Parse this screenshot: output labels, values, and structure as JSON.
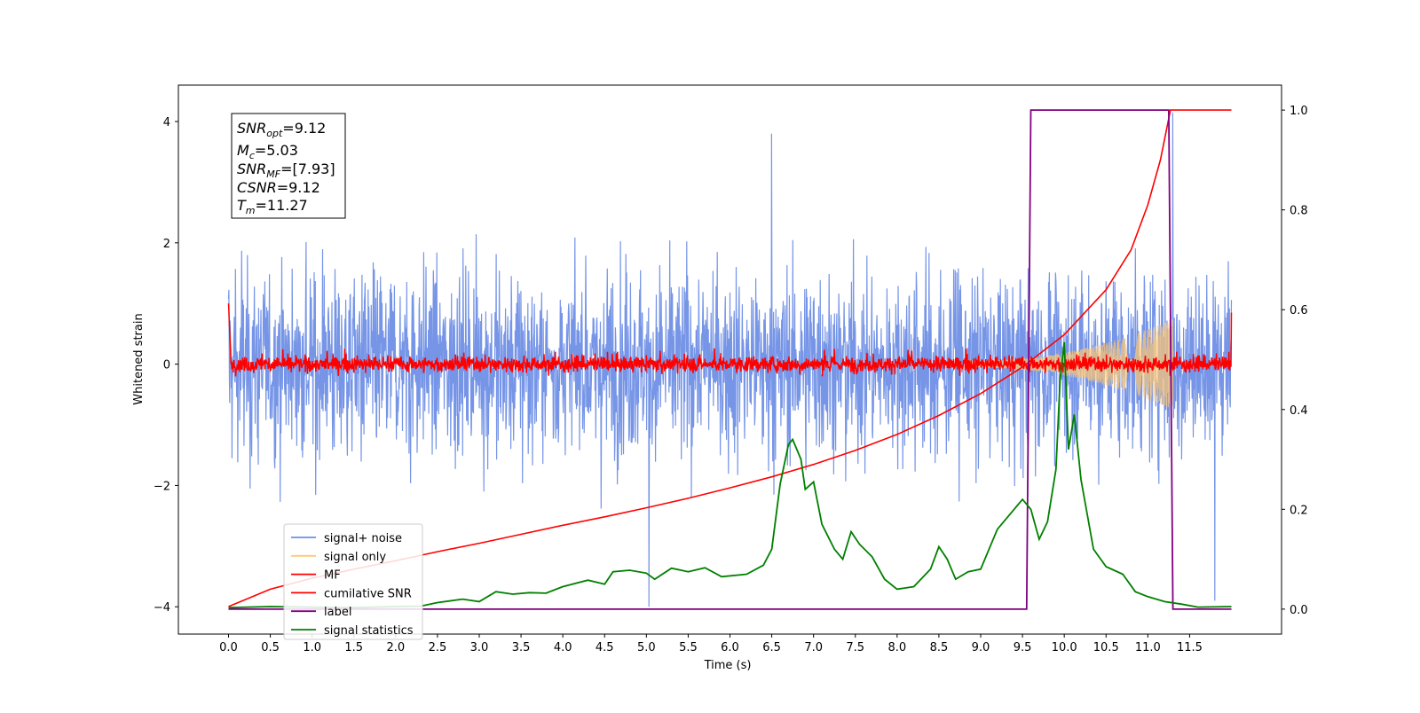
{
  "chart_data": {
    "type": "line",
    "xlabel": "Time (s)",
    "ylabel": "Whitened strain",
    "xlim": [
      -0.6,
      12.6
    ],
    "ylim_left": [
      -4.45,
      4.6
    ],
    "ylim_right": [
      -0.05,
      1.05
    ],
    "x_ticks": [
      "0.0",
      "0.5",
      "1.0",
      "1.5",
      "2.0",
      "2.5",
      "3.0",
      "3.5",
      "4.0",
      "4.5",
      "5.0",
      "5.5",
      "6.0",
      "6.5",
      "7.0",
      "7.5",
      "8.0",
      "8.5",
      "9.0",
      "9.5",
      "10.0",
      "10.5",
      "11.0",
      "11.5"
    ],
    "y_ticks_left": [
      "4",
      "2",
      "0",
      "−2",
      "−4"
    ],
    "y_ticks_right": [
      "1.0",
      "0.8",
      "0.6",
      "0.4",
      "0.2",
      "0.0"
    ],
    "info_box": {
      "snr_opt": {
        "main": "SNR",
        "sub": "opt",
        "value": "=9.12"
      },
      "mc": {
        "main": "M",
        "sub": "c",
        "value": "=5.03"
      },
      "snr_mf": {
        "main": "SNR",
        "sub": "MF",
        "value": "=[7.93]"
      },
      "csnr": {
        "main": "CSNR",
        "value": "=9.12"
      },
      "tm": {
        "main": "T",
        "sub": "m",
        "value": "=11.27"
      }
    },
    "legend": {
      "placement": "lower-left",
      "entries": [
        {
          "label": "signal+ noise",
          "color": "#6f8fe6"
        },
        {
          "label": "signal only",
          "color": "#ffc870"
        },
        {
          "label": "MF",
          "color": "#ff0000"
        },
        {
          "label": "cumilative SNR",
          "color": "#ff0000"
        },
        {
          "label": "label",
          "color": "#800080"
        },
        {
          "label": "signal statistics",
          "color": "#008000"
        }
      ]
    },
    "series": [
      {
        "name": "signal+ noise",
        "axis": "left",
        "color": "#6f8fe6",
        "x_range": [
          0,
          12.0
        ],
        "amplitude_envelope": 2.5,
        "spikes": [
          {
            "x": 5.03,
            "y": -4.0
          },
          {
            "x": 6.5,
            "y": 3.8
          },
          {
            "x": 11.3,
            "y": 4.15
          },
          {
            "x": 11.8,
            "y": -3.9
          }
        ]
      },
      {
        "name": "signal only",
        "axis": "left",
        "color": "#ffc870",
        "chirp_start": 8.8,
        "chirp_end": 11.3,
        "peak_amplitude": 0.7
      },
      {
        "name": "MF",
        "axis": "left",
        "color": "#ff0000",
        "x_range": [
          0,
          12.0
        ],
        "amplitude": 0.2,
        "start_value": 1.0,
        "end_value": 0.85
      },
      {
        "name": "cumilative SNR",
        "axis": "right",
        "color": "#ff0000",
        "points": [
          [
            0.0,
            0.005
          ],
          [
            0.5,
            0.04
          ],
          [
            1.0,
            0.062
          ],
          [
            1.5,
            0.08
          ],
          [
            2.0,
            0.097
          ],
          [
            2.5,
            0.115
          ],
          [
            3.0,
            0.132
          ],
          [
            3.5,
            0.15
          ],
          [
            4.0,
            0.168
          ],
          [
            4.5,
            0.185
          ],
          [
            5.0,
            0.203
          ],
          [
            5.5,
            0.222
          ],
          [
            6.0,
            0.243
          ],
          [
            6.5,
            0.265
          ],
          [
            7.0,
            0.29
          ],
          [
            7.5,
            0.318
          ],
          [
            8.0,
            0.35
          ],
          [
            8.5,
            0.388
          ],
          [
            9.0,
            0.432
          ],
          [
            9.5,
            0.485
          ],
          [
            10.0,
            0.55
          ],
          [
            10.5,
            0.64
          ],
          [
            10.8,
            0.72
          ],
          [
            11.0,
            0.81
          ],
          [
            11.15,
            0.9
          ],
          [
            11.27,
            1.0
          ],
          [
            12.0,
            1.0
          ]
        ]
      },
      {
        "name": "label",
        "axis": "right",
        "color": "#800080",
        "points": [
          [
            0.0,
            0.0
          ],
          [
            9.55,
            0.0
          ],
          [
            9.6,
            1.0
          ],
          [
            11.25,
            1.0
          ],
          [
            11.3,
            0.0
          ],
          [
            12.0,
            0.0
          ]
        ]
      },
      {
        "name": "signal statistics",
        "axis": "right",
        "color": "#008000",
        "points": [
          [
            0.0,
            0.003
          ],
          [
            0.5,
            0.005
          ],
          [
            1.0,
            0.004
          ],
          [
            1.5,
            0.003
          ],
          [
            2.0,
            0.005
          ],
          [
            2.3,
            0.006
          ],
          [
            2.5,
            0.013
          ],
          [
            2.8,
            0.02
          ],
          [
            3.0,
            0.015
          ],
          [
            3.2,
            0.035
          ],
          [
            3.4,
            0.03
          ],
          [
            3.6,
            0.033
          ],
          [
            3.8,
            0.032
          ],
          [
            4.0,
            0.045
          ],
          [
            4.3,
            0.058
          ],
          [
            4.5,
            0.05
          ],
          [
            4.6,
            0.075
          ],
          [
            4.8,
            0.078
          ],
          [
            5.0,
            0.072
          ],
          [
            5.1,
            0.06
          ],
          [
            5.3,
            0.082
          ],
          [
            5.5,
            0.075
          ],
          [
            5.7,
            0.083
          ],
          [
            5.9,
            0.065
          ],
          [
            6.2,
            0.07
          ],
          [
            6.4,
            0.088
          ],
          [
            6.5,
            0.12
          ],
          [
            6.6,
            0.25
          ],
          [
            6.7,
            0.33
          ],
          [
            6.75,
            0.34
          ],
          [
            6.85,
            0.3
          ],
          [
            6.9,
            0.24
          ],
          [
            7.0,
            0.255
          ],
          [
            7.1,
            0.17
          ],
          [
            7.25,
            0.12
          ],
          [
            7.35,
            0.1
          ],
          [
            7.45,
            0.155
          ],
          [
            7.55,
            0.13
          ],
          [
            7.7,
            0.105
          ],
          [
            7.85,
            0.06
          ],
          [
            8.0,
            0.04
          ],
          [
            8.2,
            0.045
          ],
          [
            8.4,
            0.08
          ],
          [
            8.5,
            0.125
          ],
          [
            8.6,
            0.1
          ],
          [
            8.7,
            0.06
          ],
          [
            8.85,
            0.075
          ],
          [
            9.0,
            0.08
          ],
          [
            9.2,
            0.16
          ],
          [
            9.4,
            0.2
          ],
          [
            9.5,
            0.22
          ],
          [
            9.6,
            0.2
          ],
          [
            9.7,
            0.14
          ],
          [
            9.8,
            0.175
          ],
          [
            9.9,
            0.28
          ],
          [
            9.95,
            0.46
          ],
          [
            10.0,
            0.535
          ],
          [
            10.05,
            0.32
          ],
          [
            10.12,
            0.39
          ],
          [
            10.2,
            0.26
          ],
          [
            10.35,
            0.12
          ],
          [
            10.5,
            0.085
          ],
          [
            10.7,
            0.07
          ],
          [
            10.85,
            0.035
          ],
          [
            11.0,
            0.025
          ],
          [
            11.2,
            0.015
          ],
          [
            11.4,
            0.01
          ],
          [
            11.6,
            0.004
          ],
          [
            12.0,
            0.005
          ]
        ]
      }
    ]
  }
}
